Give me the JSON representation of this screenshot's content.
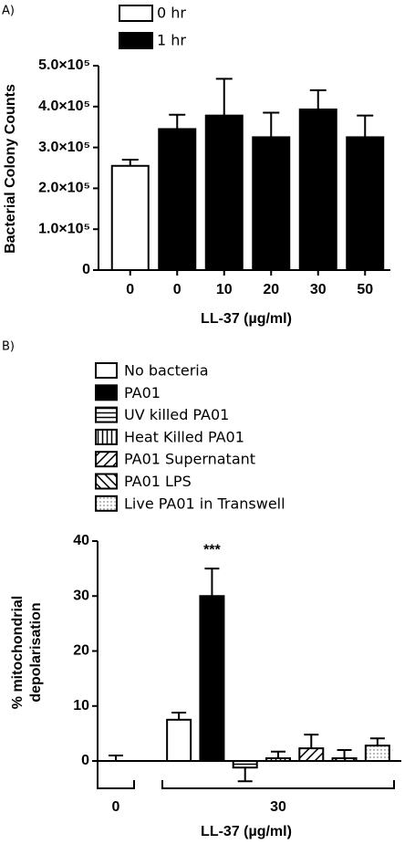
{
  "chart_data": [
    {
      "type": "bar",
      "label": "A)",
      "ylabel": "Bacterial Colony Counts",
      "xlabel": "LL-37 (µg/ml)",
      "categories": [
        "0",
        "0",
        "10",
        "20",
        "30",
        "50"
      ],
      "series": [
        {
          "name": "0 hr",
          "color": "#ffffff",
          "values": [
            255000,
            null,
            null,
            null,
            null,
            null
          ],
          "errors": [
            15000,
            null,
            null,
            null,
            null,
            null
          ]
        },
        {
          "name": "1 hr",
          "color": "#000000",
          "values": [
            null,
            345000,
            378000,
            325000,
            393000,
            325000
          ],
          "errors": [
            null,
            35000,
            90000,
            60000,
            47000,
            53000
          ]
        }
      ],
      "ylim": [
        0,
        500000
      ],
      "yticks": [
        0,
        {
          "value": 100000,
          "label": "1.0×10⁵"
        },
        {
          "value": 200000,
          "label": "2.0×10⁵"
        },
        {
          "value": 300000,
          "label": "3.0×10⁵"
        },
        {
          "value": 400000,
          "label": "4.0×10⁵"
        },
        {
          "value": 500000,
          "label": "5.0×10⁵"
        }
      ]
    },
    {
      "type": "bar",
      "label": "B)",
      "ylabel": [
        "% mitochondrial",
        "depolarisation"
      ],
      "xlabel": "LL-37 (µg/ml)",
      "annotation": "***",
      "categories": [
        "0",
        "30"
      ],
      "series": [
        {
          "name": "No bacteria",
          "color": "#ffffff",
          "pattern": "none",
          "values": [
            0,
            7.5
          ],
          "errors": [
            1,
            1.3
          ]
        },
        {
          "name": "PA01",
          "color": "#000000",
          "pattern": "solid",
          "values": [
            null,
            30
          ],
          "errors": [
            null,
            5
          ]
        },
        {
          "name": "UV killed PA01",
          "color": "#000000",
          "pattern": "horizontal",
          "values": [
            null,
            -1.2
          ],
          "errors": [
            null,
            2.5
          ]
        },
        {
          "name": "Heat Killed PA01",
          "color": "#000000",
          "pattern": "vertical",
          "values": [
            null,
            0.5
          ],
          "errors": [
            null,
            1.2
          ]
        },
        {
          "name": "PA01 Supernatant",
          "color": "#000000",
          "pattern": "diagonal",
          "values": [
            null,
            2.3
          ],
          "errors": [
            null,
            2.5
          ]
        },
        {
          "name": "PA01 LPS",
          "color": "#000000",
          "pattern": "anti-diagonal",
          "values": [
            null,
            0.5
          ],
          "errors": [
            null,
            1.5
          ]
        },
        {
          "name": "Live PA01 in Transwell",
          "color": "#000000",
          "pattern": "dots",
          "values": [
            null,
            2.8
          ],
          "errors": [
            null,
            1.3
          ]
        }
      ],
      "ylim": [
        -5,
        40
      ],
      "yticks": [
        0,
        10,
        20,
        30,
        40
      ]
    }
  ]
}
